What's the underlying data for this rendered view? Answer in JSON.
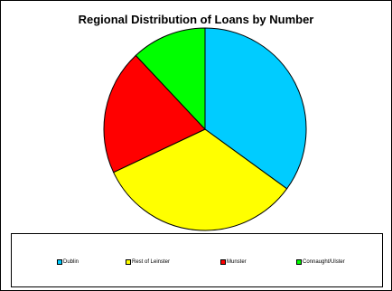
{
  "chart_data": {
    "type": "pie",
    "title": "Regional Distribution of Loans by Number",
    "slices": [
      {
        "label": "Dublin",
        "value": 35,
        "color": "#00ccff"
      },
      {
        "label": "Rest of Leinster",
        "value": 33,
        "color": "#ffff00"
      },
      {
        "label": "Munster",
        "value": 20,
        "color": "#ff0000"
      },
      {
        "label": "Connaught/Ulster",
        "value": 12,
        "color": "#00ff00"
      }
    ],
    "legend_position": "bottom",
    "start_angle": "12 o'clock, clockwise"
  }
}
